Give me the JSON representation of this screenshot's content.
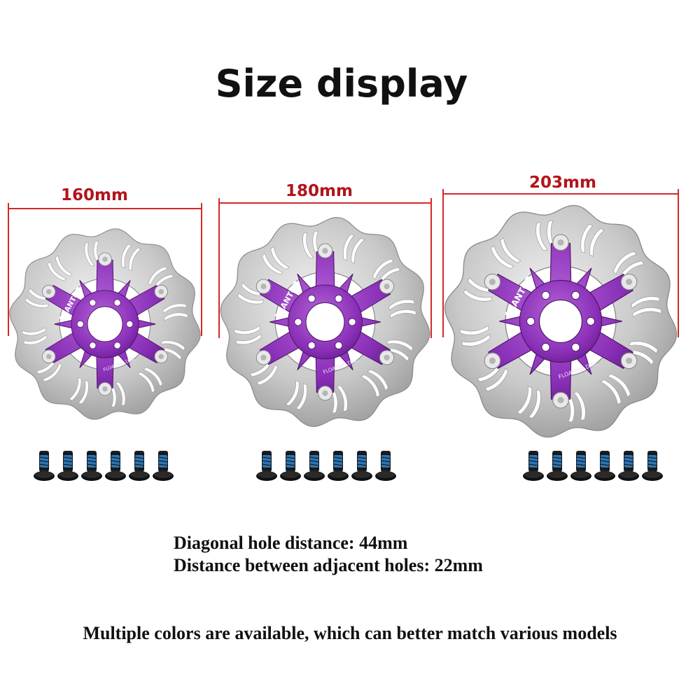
{
  "title": "Size display",
  "sizes": [
    {
      "label": "160mm"
    },
    {
      "label": "180mm"
    },
    {
      "label": "203mm"
    }
  ],
  "rotor": {
    "brand_text": "AKANTOR",
    "sub_text": "FLOATING DISC",
    "spider_color": "#8a2fb8",
    "rotor_color": "#c9c9c9"
  },
  "bolt_count_per_set": 6,
  "specs": {
    "diagonal": "Diagonal hole distance: 44mm",
    "adjacent": "Distance between adjacent holes: 22mm"
  },
  "note": "Multiple colors are available, which can better match various models"
}
